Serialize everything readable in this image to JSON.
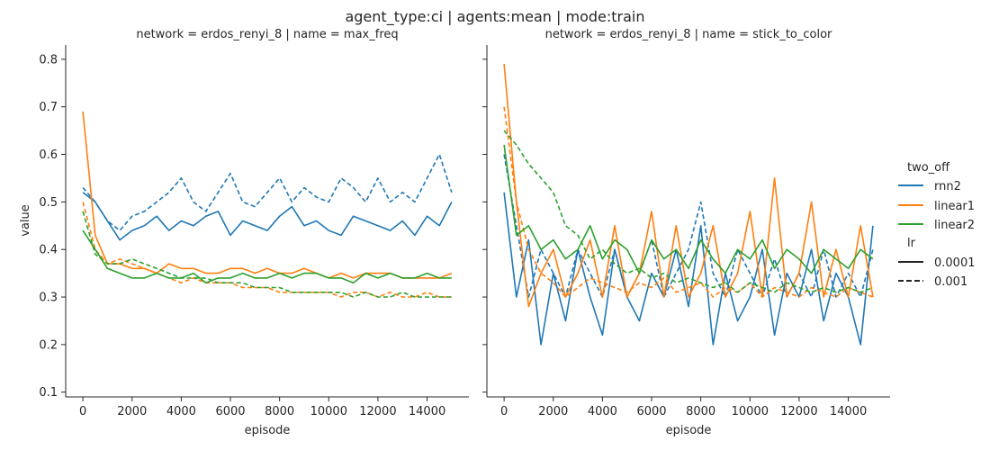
{
  "suptitle": "agent_type:ci | agents:mean | mode:train",
  "legend": {
    "hue_title": "two_off",
    "hue_entries": [
      {
        "label": "rnn2",
        "color": "#1f77b4"
      },
      {
        "label": "linear1",
        "color": "#ff7f0e"
      },
      {
        "label": "linear2",
        "color": "#2ca02c"
      }
    ],
    "style_title": "lr",
    "style_entries": [
      {
        "label": "0.0001",
        "dash": "solid"
      },
      {
        "label": "0.001",
        "dash": "dashed"
      }
    ]
  },
  "chart_data": [
    {
      "type": "line",
      "title": "network = erdos_renyi_8 | name = max_freq",
      "xlabel": "episode",
      "ylabel": "value",
      "xlim": [
        -700,
        15700
      ],
      "ylim": [
        0.09,
        0.83
      ],
      "xticks": [
        0,
        2000,
        4000,
        6000,
        8000,
        10000,
        12000,
        14000
      ],
      "yticks": [
        0.1,
        0.2,
        0.3,
        0.4,
        0.5,
        0.6,
        0.7,
        0.8
      ],
      "grid": false,
      "x_start": 0,
      "x_step": 500,
      "series": [
        {
          "name": "rnn2",
          "lr": "0.0001",
          "color": "#1f77b4",
          "dash": "solid",
          "values": [
            0.52,
            0.5,
            0.46,
            0.42,
            0.44,
            0.45,
            0.47,
            0.44,
            0.46,
            0.45,
            0.47,
            0.48,
            0.43,
            0.46,
            0.45,
            0.44,
            0.47,
            0.49,
            0.45,
            0.46,
            0.44,
            0.43,
            0.47,
            0.46,
            0.45,
            0.44,
            0.46,
            0.43,
            0.47,
            0.45,
            0.5
          ]
        },
        {
          "name": "rnn2",
          "lr": "0.001",
          "color": "#1f77b4",
          "dash": "dashed",
          "values": [
            0.53,
            0.5,
            0.46,
            0.44,
            0.47,
            0.48,
            0.5,
            0.52,
            0.55,
            0.5,
            0.48,
            0.52,
            0.56,
            0.5,
            0.49,
            0.52,
            0.55,
            0.5,
            0.53,
            0.51,
            0.5,
            0.55,
            0.53,
            0.5,
            0.55,
            0.5,
            0.52,
            0.5,
            0.55,
            0.6,
            0.52
          ]
        },
        {
          "name": "linear1",
          "lr": "0.0001",
          "color": "#ff7f0e",
          "dash": "solid",
          "values": [
            0.69,
            0.43,
            0.37,
            0.37,
            0.36,
            0.36,
            0.35,
            0.37,
            0.36,
            0.36,
            0.35,
            0.35,
            0.36,
            0.36,
            0.35,
            0.36,
            0.35,
            0.35,
            0.36,
            0.35,
            0.34,
            0.35,
            0.34,
            0.35,
            0.35,
            0.35,
            0.34,
            0.34,
            0.34,
            0.34,
            0.35
          ]
        },
        {
          "name": "linear1",
          "lr": "0.001",
          "color": "#ff7f0e",
          "dash": "dashed",
          "values": [
            0.5,
            0.4,
            0.37,
            0.38,
            0.37,
            0.36,
            0.35,
            0.34,
            0.33,
            0.34,
            0.33,
            0.33,
            0.33,
            0.32,
            0.32,
            0.32,
            0.31,
            0.31,
            0.31,
            0.31,
            0.31,
            0.3,
            0.31,
            0.31,
            0.3,
            0.31,
            0.3,
            0.3,
            0.31,
            0.3,
            0.3
          ]
        },
        {
          "name": "linear2",
          "lr": "0.0001",
          "color": "#2ca02c",
          "dash": "solid",
          "values": [
            0.44,
            0.4,
            0.36,
            0.35,
            0.34,
            0.34,
            0.35,
            0.34,
            0.34,
            0.35,
            0.33,
            0.34,
            0.34,
            0.35,
            0.34,
            0.34,
            0.35,
            0.34,
            0.35,
            0.35,
            0.34,
            0.34,
            0.33,
            0.35,
            0.34,
            0.35,
            0.34,
            0.34,
            0.35,
            0.34,
            0.34
          ]
        },
        {
          "name": "linear2",
          "lr": "0.001",
          "color": "#2ca02c",
          "dash": "dashed",
          "values": [
            0.48,
            0.39,
            0.37,
            0.37,
            0.38,
            0.37,
            0.36,
            0.35,
            0.34,
            0.34,
            0.34,
            0.33,
            0.33,
            0.33,
            0.32,
            0.32,
            0.32,
            0.31,
            0.31,
            0.31,
            0.31,
            0.31,
            0.3,
            0.31,
            0.3,
            0.3,
            0.31,
            0.3,
            0.3,
            0.3,
            0.3
          ]
        }
      ]
    },
    {
      "type": "line",
      "title": "network = erdos_renyi_8 | name = stick_to_color",
      "xlabel": "episode",
      "ylabel": "",
      "xlim": [
        -700,
        15700
      ],
      "ylim": [
        0.09,
        0.83
      ],
      "xticks": [
        0,
        2000,
        4000,
        6000,
        8000,
        10000,
        12000,
        14000
      ],
      "yticks": [
        0.1,
        0.2,
        0.3,
        0.4,
        0.5,
        0.6,
        0.7,
        0.8
      ],
      "grid": false,
      "x_start": 0,
      "x_step": 500,
      "series": [
        {
          "name": "rnn2",
          "lr": "0.0001",
          "color": "#1f77b4",
          "dash": "solid",
          "values": [
            0.52,
            0.3,
            0.42,
            0.2,
            0.35,
            0.25,
            0.4,
            0.3,
            0.22,
            0.4,
            0.3,
            0.25,
            0.35,
            0.3,
            0.4,
            0.28,
            0.45,
            0.2,
            0.35,
            0.25,
            0.3,
            0.4,
            0.22,
            0.35,
            0.3,
            0.4,
            0.25,
            0.35,
            0.3,
            0.2,
            0.45
          ]
        },
        {
          "name": "rnn2",
          "lr": "0.001",
          "color": "#1f77b4",
          "dash": "dashed",
          "values": [
            0.6,
            0.45,
            0.3,
            0.4,
            0.35,
            0.3,
            0.4,
            0.35,
            0.3,
            0.4,
            0.3,
            0.35,
            0.42,
            0.3,
            0.35,
            0.4,
            0.5,
            0.35,
            0.3,
            0.4,
            0.35,
            0.3,
            0.38,
            0.3,
            0.35,
            0.3,
            0.4,
            0.3,
            0.35,
            0.3,
            0.4
          ]
        },
        {
          "name": "linear1",
          "lr": "0.0001",
          "color": "#ff7f0e",
          "dash": "solid",
          "values": [
            0.79,
            0.5,
            0.28,
            0.35,
            0.4,
            0.3,
            0.35,
            0.42,
            0.3,
            0.45,
            0.3,
            0.35,
            0.48,
            0.3,
            0.45,
            0.3,
            0.35,
            0.45,
            0.3,
            0.35,
            0.48,
            0.3,
            0.55,
            0.3,
            0.35,
            0.5,
            0.3,
            0.4,
            0.3,
            0.45,
            0.3
          ]
        },
        {
          "name": "linear1",
          "lr": "0.001",
          "color": "#ff7f0e",
          "dash": "dashed",
          "values": [
            0.7,
            0.5,
            0.4,
            0.35,
            0.33,
            0.3,
            0.32,
            0.34,
            0.33,
            0.32,
            0.31,
            0.33,
            0.32,
            0.34,
            0.31,
            0.32,
            0.33,
            0.3,
            0.32,
            0.31,
            0.33,
            0.3,
            0.32,
            0.31,
            0.3,
            0.32,
            0.31,
            0.3,
            0.32,
            0.31,
            0.3
          ]
        },
        {
          "name": "linear2",
          "lr": "0.0001",
          "color": "#2ca02c",
          "dash": "solid",
          "values": [
            0.62,
            0.43,
            0.45,
            0.4,
            0.42,
            0.38,
            0.4,
            0.45,
            0.38,
            0.42,
            0.4,
            0.35,
            0.42,
            0.38,
            0.4,
            0.36,
            0.42,
            0.38,
            0.35,
            0.4,
            0.38,
            0.42,
            0.36,
            0.4,
            0.38,
            0.35,
            0.4,
            0.38,
            0.36,
            0.4,
            0.38
          ]
        },
        {
          "name": "linear2",
          "lr": "0.001",
          "color": "#2ca02c",
          "dash": "dashed",
          "values": [
            0.65,
            0.62,
            0.58,
            0.55,
            0.52,
            0.45,
            0.43,
            0.38,
            0.4,
            0.37,
            0.35,
            0.36,
            0.34,
            0.35,
            0.33,
            0.34,
            0.33,
            0.32,
            0.33,
            0.31,
            0.33,
            0.32,
            0.31,
            0.33,
            0.32,
            0.31,
            0.32,
            0.31,
            0.32,
            0.31,
            0.32
          ]
        }
      ]
    }
  ]
}
